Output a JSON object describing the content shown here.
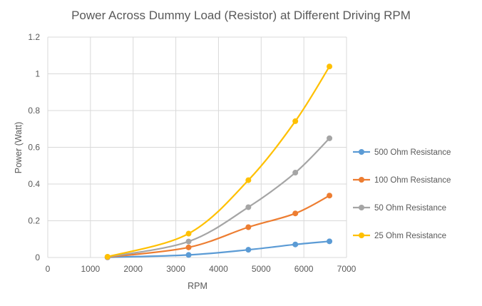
{
  "chart_data": {
    "type": "line",
    "title": "Power Across Dummy Load (Resistor) at Different Driving RPM",
    "xlabel": "RPM",
    "ylabel": "Power (Watt)",
    "xlim": [
      0,
      7000
    ],
    "ylim": [
      0,
      1.2
    ],
    "xticks": [
      0,
      1000,
      2000,
      3000,
      4000,
      5000,
      6000,
      7000
    ],
    "yticks": [
      0,
      0.2,
      0.4,
      0.6,
      0.8,
      1,
      1.2
    ],
    "x_tick_labels": [
      "0",
      "1000",
      "2000",
      "3000",
      "4000",
      "5000",
      "6000",
      "7000"
    ],
    "y_tick_labels": [
      "0",
      "0.2",
      "0.4",
      "0.6",
      "0.8",
      "1",
      "1.2"
    ],
    "grid": true,
    "legend_position": "right",
    "series": [
      {
        "name": "500 Ohm Resistance",
        "color": "#5b9bd5",
        "x": [
          1400,
          3300,
          4700,
          5800,
          6600
        ],
        "values": [
          0.001,
          0.014,
          0.042,
          0.071,
          0.088
        ]
      },
      {
        "name": "100 Ohm Resistance",
        "color": "#ed7d31",
        "x": [
          1400,
          3300,
          4700,
          5800,
          6600
        ],
        "values": [
          0.002,
          0.055,
          0.165,
          0.24,
          0.337
        ]
      },
      {
        "name": "50 Ohm Resistance",
        "color": "#a5a5a5",
        "x": [
          1400,
          3300,
          4700,
          5800,
          6600
        ],
        "values": [
          0.003,
          0.087,
          0.274,
          0.462,
          0.649
        ]
      },
      {
        "name": "25 Ohm Resistance",
        "color": "#ffc000",
        "x": [
          1400,
          3300,
          4700,
          5800,
          6600
        ],
        "values": [
          0.004,
          0.13,
          0.421,
          0.742,
          1.04
        ]
      }
    ]
  }
}
